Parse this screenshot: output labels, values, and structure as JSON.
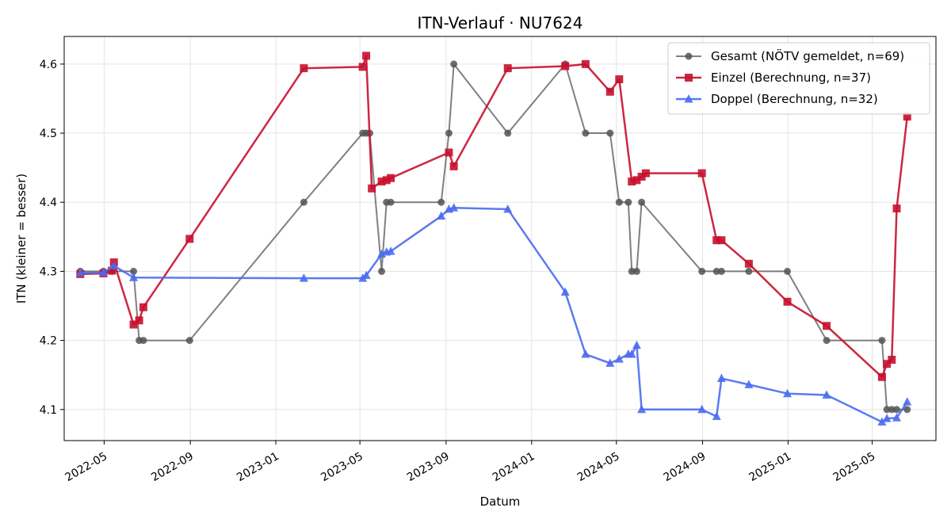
{
  "chart_data": {
    "type": "line",
    "title": "ITN-Verlauf · NU7624",
    "xlabel": "Datum",
    "ylabel": "ITN  (kleiner = besser)",
    "ylim": [
      4.055,
      4.64
    ],
    "xlim": [
      "2022-03-05",
      "2025-07-31"
    ],
    "grid": true,
    "legend_position": "top-right",
    "x_tick_labels": [
      "2022-05",
      "2022-09",
      "2023-01",
      "2023-05",
      "2023-09",
      "2024-01",
      "2024-05",
      "2024-09",
      "2025-01",
      "2025-05"
    ],
    "y_tick_labels": [
      "4.1",
      "4.2",
      "4.3",
      "4.4",
      "4.5",
      "4.6"
    ],
    "series": [
      {
        "name": "Gesamt (NÖTV gemeldet, n=69)",
        "color": "#555555",
        "marker": "circle",
        "points": [
          [
            "2022-03-28",
            4.3
          ],
          [
            "2022-04-30",
            4.3
          ],
          [
            "2022-05-12",
            4.3
          ],
          [
            "2022-06-12",
            4.3
          ],
          [
            "2022-06-20",
            4.2
          ],
          [
            "2022-06-26",
            4.2
          ],
          [
            "2022-08-31",
            4.2
          ],
          [
            "2023-02-10",
            4.4
          ],
          [
            "2023-05-05",
            4.5
          ],
          [
            "2023-05-10",
            4.5
          ],
          [
            "2023-05-15",
            4.5
          ],
          [
            "2023-06-01",
            4.3
          ],
          [
            "2023-06-08",
            4.4
          ],
          [
            "2023-06-14",
            4.4
          ],
          [
            "2023-08-25",
            4.4
          ],
          [
            "2023-09-05",
            4.5
          ],
          [
            "2023-09-12",
            4.6
          ],
          [
            "2023-11-28",
            4.5
          ],
          [
            "2024-02-18",
            4.6
          ],
          [
            "2024-03-18",
            4.5
          ],
          [
            "2024-04-22",
            4.5
          ],
          [
            "2024-05-05",
            4.4
          ],
          [
            "2024-05-18",
            4.4
          ],
          [
            "2024-05-23",
            4.3
          ],
          [
            "2024-05-30",
            4.3
          ],
          [
            "2024-06-06",
            4.4
          ],
          [
            "2024-08-31",
            4.3
          ],
          [
            "2024-09-21",
            4.3
          ],
          [
            "2024-09-28",
            4.3
          ],
          [
            "2024-11-06",
            4.3
          ],
          [
            "2024-12-31",
            4.3
          ],
          [
            "2025-02-25",
            4.2
          ],
          [
            "2025-05-15",
            4.2
          ],
          [
            "2025-05-22",
            4.1
          ],
          [
            "2025-05-29",
            4.1
          ],
          [
            "2025-06-05",
            4.1
          ],
          [
            "2025-06-20",
            4.1
          ]
        ]
      },
      {
        "name": "Einzel (Berechnung, n=37)",
        "color": "#c8102e",
        "marker": "square",
        "points": [
          [
            "2022-03-28",
            4.296
          ],
          [
            "2022-04-30",
            4.297
          ],
          [
            "2022-05-12",
            4.301
          ],
          [
            "2022-05-15",
            4.313
          ],
          [
            "2022-06-12",
            4.223
          ],
          [
            "2022-06-20",
            4.229
          ],
          [
            "2022-06-26",
            4.248
          ],
          [
            "2022-08-31",
            4.347
          ],
          [
            "2023-02-10",
            4.594
          ],
          [
            "2023-05-05",
            4.596
          ],
          [
            "2023-05-10",
            4.612
          ],
          [
            "2023-05-18",
            4.42
          ],
          [
            "2023-06-01",
            4.43
          ],
          [
            "2023-06-08",
            4.432
          ],
          [
            "2023-06-14",
            4.435
          ],
          [
            "2023-09-05",
            4.472
          ],
          [
            "2023-09-12",
            4.452
          ],
          [
            "2023-11-28",
            4.594
          ],
          [
            "2024-02-18",
            4.597
          ],
          [
            "2024-03-18",
            4.6
          ],
          [
            "2024-04-22",
            4.56
          ],
          [
            "2024-05-05",
            4.578
          ],
          [
            "2024-05-23",
            4.43
          ],
          [
            "2024-05-30",
            4.432
          ],
          [
            "2024-06-06",
            4.437
          ],
          [
            "2024-06-12",
            4.442
          ],
          [
            "2024-08-31",
            4.442
          ],
          [
            "2024-09-21",
            4.345
          ],
          [
            "2024-09-28",
            4.345
          ],
          [
            "2024-11-06",
            4.311
          ],
          [
            "2024-12-31",
            4.256
          ],
          [
            "2025-02-25",
            4.221
          ],
          [
            "2025-05-15",
            4.147
          ],
          [
            "2025-05-22",
            4.166
          ],
          [
            "2025-05-29",
            4.172
          ],
          [
            "2025-06-05",
            4.391
          ],
          [
            "2025-06-20",
            4.524
          ]
        ]
      },
      {
        "name": "Doppel (Berechnung, n=32)",
        "color": "#4a6cf0",
        "marker": "triangle",
        "points": [
          [
            "2022-03-28",
            4.298
          ],
          [
            "2022-04-30",
            4.298
          ],
          [
            "2022-05-15",
            4.308
          ],
          [
            "2022-06-12",
            4.291
          ],
          [
            "2023-02-10",
            4.29
          ],
          [
            "2023-05-05",
            4.29
          ],
          [
            "2023-05-10",
            4.294
          ],
          [
            "2023-06-01",
            4.325
          ],
          [
            "2023-06-08",
            4.328
          ],
          [
            "2023-06-14",
            4.329
          ],
          [
            "2023-08-25",
            4.38
          ],
          [
            "2023-09-05",
            4.39
          ],
          [
            "2023-09-12",
            4.392
          ],
          [
            "2023-11-28",
            4.39
          ],
          [
            "2024-02-18",
            4.27
          ],
          [
            "2024-03-18",
            4.18
          ],
          [
            "2024-04-22",
            4.167
          ],
          [
            "2024-05-05",
            4.173
          ],
          [
            "2024-05-18",
            4.18
          ],
          [
            "2024-05-23",
            4.18
          ],
          [
            "2024-05-30",
            4.193
          ],
          [
            "2024-06-06",
            4.1
          ],
          [
            "2024-08-31",
            4.1
          ],
          [
            "2024-09-21",
            4.09
          ],
          [
            "2024-09-28",
            4.145
          ],
          [
            "2024-11-06",
            4.136
          ],
          [
            "2024-12-31",
            4.123
          ],
          [
            "2025-02-25",
            4.121
          ],
          [
            "2025-05-15",
            4.082
          ],
          [
            "2025-05-22",
            4.087
          ],
          [
            "2025-06-05",
            4.088
          ],
          [
            "2025-06-20",
            4.111
          ]
        ]
      }
    ]
  }
}
